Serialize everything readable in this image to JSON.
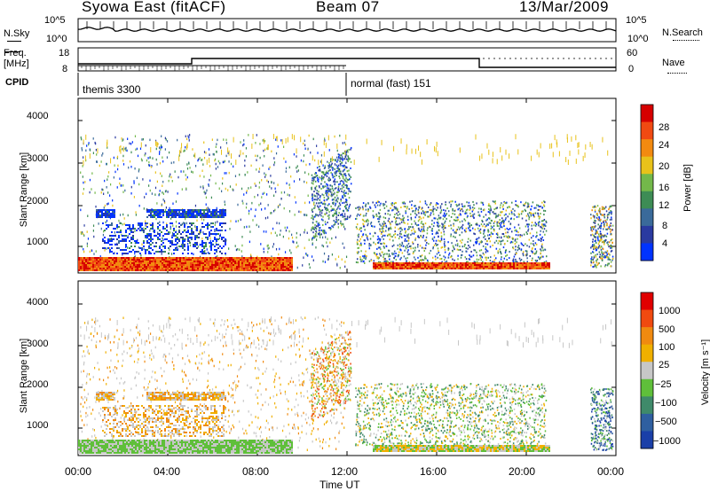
{
  "header": {
    "station": "Syowa East (fitACF)",
    "beam": "Beam 07",
    "date": "13/Mar/2009"
  },
  "top_panel": {
    "left_label": "N.Sky",
    "right_label": "N.Search",
    "left_ticks": [
      "10^5",
      "10^0"
    ],
    "right_ticks": [
      "10^5",
      "10^0"
    ]
  },
  "freq_panel": {
    "left_label_1": "Freq.",
    "left_label_2": "[MHz]",
    "right_label": "Nave",
    "left_ticks": [
      "18",
      "8"
    ],
    "right_ticks": [
      "60",
      "0"
    ]
  },
  "cpid": {
    "label": "CPID",
    "modes": [
      "themis 3300",
      "normal (fast) 151"
    ]
  },
  "chart_data": [
    {
      "type": "heatmap",
      "panel": "power",
      "ylabel": "Slant Range [km]",
      "yticks": [
        "4000",
        "3000",
        "2000",
        "1000"
      ],
      "ylim": [
        180,
        4600
      ],
      "colorbar_label": "Power [dB]",
      "colorbar_ticks": [
        "28",
        "24",
        "20",
        "16",
        "12",
        "8",
        "4"
      ],
      "colors": [
        "#0033ff",
        "#2a3aa0",
        "#3a6a9a",
        "#3d8c55",
        "#73b84a",
        "#e8c21a",
        "#f28a10",
        "#f04a12",
        "#d60000"
      ]
    },
    {
      "type": "heatmap",
      "panel": "velocity",
      "ylabel": "Slant Range [km]",
      "yticks": [
        "4000",
        "3000",
        "2000",
        "1000"
      ],
      "ylim": [
        180,
        4600
      ],
      "colorbar_label": "Velocity [m s⁻¹]",
      "colorbar_ticks": [
        "1000",
        "500",
        "100",
        "25",
        "−25",
        "−100",
        "−500",
        "−1000"
      ],
      "colors": [
        "#1a3fa8",
        "#2f5fa0",
        "#3f8a6a",
        "#5fbf3a",
        "#c7c7c7",
        "#f0b000",
        "#f08a10",
        "#f04a10",
        "#e00000"
      ]
    }
  ],
  "xaxis": {
    "ticks": [
      "00:00",
      "04:00",
      "08:00",
      "12:00",
      "16:00",
      "20:00",
      "00:00"
    ],
    "label": "Time UT"
  }
}
